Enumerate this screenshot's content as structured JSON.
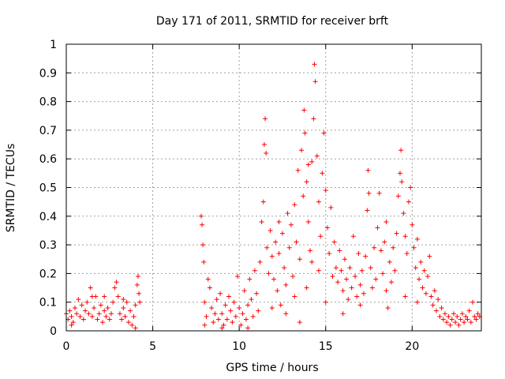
{
  "chart_data": {
    "type": "scatter",
    "title": "Day 171 of 2011, SRMTID for receiver brft",
    "xlabel": "GPS time / hours",
    "ylabel": "SRMTID / TECUs",
    "xlim": [
      0,
      24
    ],
    "ylim": [
      0,
      1
    ],
    "xticks": [
      0,
      5,
      10,
      15,
      20
    ],
    "yticks": [
      0,
      0.1,
      0.2,
      0.3,
      0.4,
      0.5,
      0.6,
      0.7,
      0.8,
      0.9,
      1
    ],
    "xtick_labels": [
      "0",
      "5",
      "10",
      "15",
      "20"
    ],
    "ytick_labels": [
      "0",
      "0.1",
      "0.2",
      "0.3",
      "0.4",
      "0.5",
      "0.6",
      "0.7",
      "0.8",
      "0.9",
      "1"
    ],
    "grid": true,
    "marker": "+",
    "color": "#ff0000",
    "series": [
      {
        "name": "SRMTID",
        "points": [
          [
            0.0,
            0.06
          ],
          [
            0.1,
            0.04
          ],
          [
            0.2,
            0.07
          ],
          [
            0.3,
            0.05
          ],
          [
            0.4,
            0.03
          ],
          [
            0.5,
            0.08
          ],
          [
            0.6,
            0.06
          ],
          [
            0.7,
            0.11
          ],
          [
            0.8,
            0.05
          ],
          [
            0.9,
            0.09
          ],
          [
            1.0,
            0.04
          ],
          [
            1.1,
            0.07
          ],
          [
            1.2,
            0.1
          ],
          [
            1.3,
            0.06
          ],
          [
            1.4,
            0.15
          ],
          [
            1.5,
            0.05
          ],
          [
            1.6,
            0.08
          ],
          [
            1.7,
            0.12
          ],
          [
            1.8,
            0.04
          ],
          [
            1.9,
            0.06
          ],
          [
            2.0,
            0.09
          ],
          [
            2.1,
            0.03
          ],
          [
            2.2,
            0.07
          ],
          [
            2.3,
            0.05
          ],
          [
            2.4,
            0.08
          ],
          [
            2.5,
            0.04
          ],
          [
            2.6,
            0.06
          ],
          [
            2.7,
            0.1
          ],
          [
            2.8,
            0.15
          ],
          [
            2.9,
            0.17
          ],
          [
            3.0,
            0.12
          ],
          [
            3.1,
            0.06
          ],
          [
            3.2,
            0.04
          ],
          [
            3.3,
            0.08
          ],
          [
            3.4,
            0.05
          ],
          [
            3.5,
            0.1
          ],
          [
            3.6,
            0.03
          ],
          [
            3.7,
            0.07
          ],
          [
            3.8,
            0.02
          ],
          [
            3.9,
            0.05
          ],
          [
            4.0,
            0.09
          ],
          [
            4.1,
            0.16
          ],
          [
            4.15,
            0.19
          ],
          [
            4.2,
            0.13
          ],
          [
            4.25,
            0.1
          ],
          [
            0.3,
            0.02
          ],
          [
            1.5,
            0.12
          ],
          [
            3.3,
            0.11
          ],
          [
            4.0,
            0.01
          ],
          [
            2.2,
            0.12
          ],
          [
            7.8,
            0.4
          ],
          [
            7.85,
            0.37
          ],
          [
            7.9,
            0.3
          ],
          [
            7.95,
            0.24
          ],
          [
            8.0,
            0.1
          ],
          [
            8.1,
            0.05
          ],
          [
            8.2,
            0.18
          ],
          [
            8.3,
            0.15
          ],
          [
            8.4,
            0.08
          ],
          [
            8.5,
            0.03
          ],
          [
            8.6,
            0.06
          ],
          [
            8.7,
            0.11
          ],
          [
            8.8,
            0.04
          ],
          [
            8.9,
            0.13
          ],
          [
            9.0,
            0.06
          ],
          [
            9.1,
            0.02
          ],
          [
            9.2,
            0.09
          ],
          [
            9.3,
            0.04
          ],
          [
            9.4,
            0.12
          ],
          [
            9.5,
            0.07
          ],
          [
            9.6,
            0.03
          ],
          [
            9.7,
            0.1
          ],
          [
            9.8,
            0.05
          ],
          [
            9.9,
            0.19
          ],
          [
            10.0,
            0.08
          ],
          [
            10.1,
            0.02
          ],
          [
            10.2,
            0.06
          ],
          [
            10.3,
            0.14
          ],
          [
            10.4,
            0.04
          ],
          [
            10.5,
            0.09
          ],
          [
            10.6,
            0.18
          ],
          [
            10.7,
            0.11
          ],
          [
            10.8,
            0.05
          ],
          [
            10.9,
            0.21
          ],
          [
            11.0,
            0.13
          ],
          [
            11.1,
            0.07
          ],
          [
            11.2,
            0.24
          ],
          [
            8.0,
            0.02
          ],
          [
            9.0,
            0.01
          ],
          [
            10.5,
            0.01
          ],
          [
            11.3,
            0.38
          ],
          [
            11.4,
            0.45
          ],
          [
            11.45,
            0.65
          ],
          [
            11.5,
            0.74
          ],
          [
            11.55,
            0.62
          ],
          [
            11.6,
            0.29
          ],
          [
            11.7,
            0.2
          ],
          [
            11.8,
            0.35
          ],
          [
            11.9,
            0.26
          ],
          [
            12.0,
            0.18
          ],
          [
            12.1,
            0.31
          ],
          [
            12.2,
            0.14
          ],
          [
            12.3,
            0.27
          ],
          [
            12.4,
            0.09
          ],
          [
            12.5,
            0.34
          ],
          [
            12.6,
            0.22
          ],
          [
            12.7,
            0.16
          ],
          [
            12.8,
            0.41
          ],
          [
            12.9,
            0.29
          ],
          [
            13.0,
            0.37
          ],
          [
            13.1,
            0.19
          ],
          [
            13.2,
            0.44
          ],
          [
            13.3,
            0.31
          ],
          [
            13.4,
            0.56
          ],
          [
            13.5,
            0.25
          ],
          [
            13.6,
            0.63
          ],
          [
            13.7,
            0.47
          ],
          [
            13.75,
            0.77
          ],
          [
            13.8,
            0.69
          ],
          [
            13.9,
            0.52
          ],
          [
            14.0,
            0.38
          ],
          [
            14.1,
            0.28
          ],
          [
            14.2,
            0.59
          ],
          [
            14.3,
            0.74
          ],
          [
            14.35,
            0.93
          ],
          [
            14.4,
            0.87
          ],
          [
            14.5,
            0.61
          ],
          [
            14.6,
            0.45
          ],
          [
            14.7,
            0.33
          ],
          [
            14.8,
            0.55
          ],
          [
            14.9,
            0.69
          ],
          [
            15.0,
            0.49
          ],
          [
            15.1,
            0.36
          ],
          [
            15.2,
            0.27
          ],
          [
            15.3,
            0.43
          ],
          [
            15.4,
            0.19
          ],
          [
            15.5,
            0.31
          ],
          [
            15.6,
            0.22
          ],
          [
            15.7,
            0.17
          ],
          [
            15.8,
            0.28
          ],
          [
            13.2,
            0.12
          ],
          [
            12.7,
            0.06
          ],
          [
            13.9,
            0.15
          ],
          [
            14.6,
            0.21
          ],
          [
            14.0,
            0.58
          ],
          [
            12.3,
            0.38
          ],
          [
            11.9,
            0.08
          ],
          [
            13.5,
            0.03
          ],
          [
            15.0,
            0.1
          ],
          [
            14.2,
            0.24
          ],
          [
            15.9,
            0.21
          ],
          [
            16.0,
            0.14
          ],
          [
            16.1,
            0.25
          ],
          [
            16.2,
            0.18
          ],
          [
            16.3,
            0.11
          ],
          [
            16.4,
            0.22
          ],
          [
            16.5,
            0.15
          ],
          [
            16.6,
            0.33
          ],
          [
            16.7,
            0.19
          ],
          [
            16.8,
            0.12
          ],
          [
            16.9,
            0.27
          ],
          [
            17.0,
            0.16
          ],
          [
            17.1,
            0.21
          ],
          [
            17.2,
            0.13
          ],
          [
            17.3,
            0.26
          ],
          [
            17.4,
            0.42
          ],
          [
            17.45,
            0.56
          ],
          [
            17.5,
            0.48
          ],
          [
            17.6,
            0.22
          ],
          [
            17.7,
            0.15
          ],
          [
            17.8,
            0.29
          ],
          [
            17.9,
            0.18
          ],
          [
            18.0,
            0.36
          ],
          [
            18.1,
            0.48
          ],
          [
            18.2,
            0.28
          ],
          [
            18.3,
            0.2
          ],
          [
            18.4,
            0.31
          ],
          [
            18.5,
            0.14
          ],
          [
            18.6,
            0.08
          ],
          [
            18.7,
            0.24
          ],
          [
            18.8,
            0.17
          ],
          [
            18.9,
            0.29
          ],
          [
            19.0,
            0.21
          ],
          [
            19.1,
            0.34
          ],
          [
            19.2,
            0.47
          ],
          [
            19.3,
            0.55
          ],
          [
            19.35,
            0.63
          ],
          [
            19.4,
            0.52
          ],
          [
            19.5,
            0.41
          ],
          [
            19.6,
            0.33
          ],
          [
            19.7,
            0.27
          ],
          [
            19.8,
            0.45
          ],
          [
            19.9,
            0.5
          ],
          [
            20.0,
            0.37
          ],
          [
            20.1,
            0.29
          ],
          [
            20.2,
            0.22
          ],
          [
            20.3,
            0.32
          ],
          [
            20.4,
            0.18
          ],
          [
            20.5,
            0.24
          ],
          [
            20.6,
            0.15
          ],
          [
            20.7,
            0.21
          ],
          [
            20.8,
            0.13
          ],
          [
            20.9,
            0.19
          ],
          [
            21.0,
            0.26
          ],
          [
            21.1,
            0.12
          ],
          [
            16.0,
            0.06
          ],
          [
            18.5,
            0.38
          ],
          [
            17.0,
            0.09
          ],
          [
            19.6,
            0.12
          ],
          [
            20.3,
            0.1
          ],
          [
            21.2,
            0.09
          ],
          [
            21.3,
            0.14
          ],
          [
            21.4,
            0.07
          ],
          [
            21.5,
            0.11
          ],
          [
            21.6,
            0.05
          ],
          [
            21.7,
            0.08
          ],
          [
            21.8,
            0.04
          ],
          [
            21.9,
            0.06
          ],
          [
            22.0,
            0.03
          ],
          [
            22.1,
            0.05
          ],
          [
            22.2,
            0.02
          ],
          [
            22.3,
            0.04
          ],
          [
            22.4,
            0.06
          ],
          [
            22.5,
            0.03
          ],
          [
            22.6,
            0.05
          ],
          [
            22.7,
            0.02
          ],
          [
            22.8,
            0.04
          ],
          [
            22.9,
            0.06
          ],
          [
            23.0,
            0.03
          ],
          [
            23.1,
            0.05
          ],
          [
            23.2,
            0.04
          ],
          [
            23.3,
            0.07
          ],
          [
            23.4,
            0.03
          ],
          [
            23.5,
            0.1
          ],
          [
            23.6,
            0.05
          ],
          [
            23.7,
            0.04
          ],
          [
            23.8,
            0.06
          ],
          [
            23.9,
            0.05
          ]
        ]
      }
    ]
  }
}
